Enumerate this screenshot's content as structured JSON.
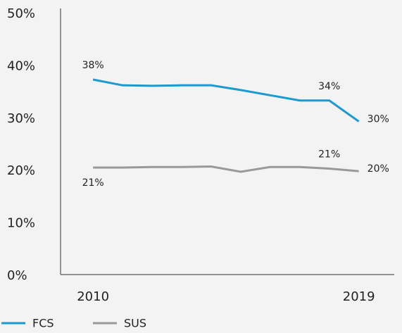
{
  "chart_data": {
    "type": "line",
    "x": [
      2010,
      2011,
      2012,
      2013,
      2014,
      2015,
      2016,
      2017,
      2018,
      2019
    ],
    "series": [
      {
        "name": "FCS",
        "color": "#1a9ad0",
        "values": [
          37.5,
          36.4,
          36.3,
          36.4,
          36.4,
          35.5,
          34.5,
          33.5,
          33.5,
          29.5
        ],
        "value_labels": [
          "38%",
          null,
          null,
          null,
          null,
          null,
          null,
          null,
          "34%",
          "30%"
        ]
      },
      {
        "name": "SUS",
        "color": "#999999",
        "values": [
          20.7,
          20.7,
          20.8,
          20.8,
          20.9,
          19.9,
          20.8,
          20.8,
          20.5,
          20.0
        ],
        "value_labels": [
          "21%",
          null,
          null,
          null,
          null,
          null,
          null,
          null,
          "21%",
          "20%"
        ]
      }
    ],
    "xlim": [
      2008.9,
      2020.2
    ],
    "xticks": [
      2010,
      2019
    ],
    "ylim": [
      0,
      50
    ],
    "yticks": [
      {
        "value": 0,
        "label": "0%"
      },
      {
        "value": 10,
        "label": "10%"
      },
      {
        "value": 20,
        "label": "20%"
      },
      {
        "value": 30,
        "label": "30%"
      },
      {
        "value": 40,
        "label": "40%"
      },
      {
        "value": 50,
        "label": "50%"
      }
    ],
    "legend": "bottom-left",
    "grid": false
  }
}
